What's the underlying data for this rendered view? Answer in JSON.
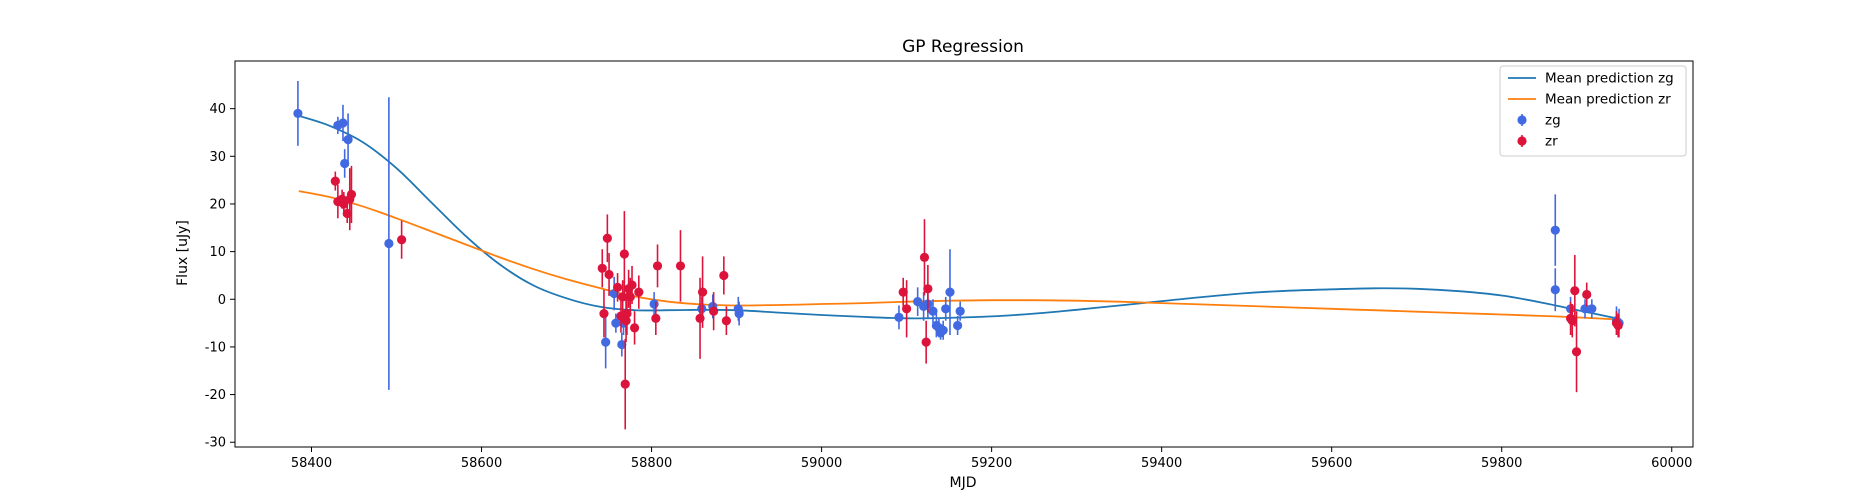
{
  "chart_data": {
    "type": "scatter",
    "title": "GP Regression",
    "xlabel": "MJD",
    "ylabel": "Flux [uJy]",
    "xlim": [
      58310,
      60025
    ],
    "ylim": [
      -31,
      50
    ],
    "xticks": [
      58400,
      58600,
      58800,
      59000,
      59200,
      59400,
      59600,
      59800,
      60000
    ],
    "yticks": [
      -30,
      -20,
      -10,
      0,
      10,
      20,
      30,
      40
    ],
    "grid": false,
    "legend_position": "top-right",
    "colors": {
      "zg_points": "#4169e1",
      "zr_points": "#dc143c",
      "zg_line": "#1f77b4",
      "zr_line": "#ff7f0e"
    },
    "lines": [
      {
        "name": "Mean prediction zg",
        "x": [
          58385,
          58420,
          58460,
          58500,
          58540,
          58580,
          58620,
          58660,
          58700,
          58740,
          58780,
          58820,
          58860,
          58900,
          58950,
          59000,
          59050,
          59100,
          59150,
          59200,
          59250,
          59300,
          59350,
          59400,
          59450,
          59500,
          59550,
          59600,
          59650,
          59700,
          59750,
          59800,
          59850,
          59900,
          59940
        ],
        "y": [
          38.5,
          36.5,
          33,
          27.5,
          20.5,
          13.5,
          7.5,
          3,
          0.2,
          -1.6,
          -2.3,
          -2.3,
          -2.2,
          -2.3,
          -2.8,
          -3.3,
          -3.7,
          -4.0,
          -3.9,
          -3.6,
          -3.0,
          -2.2,
          -1.3,
          -0.4,
          0.5,
          1.3,
          1.8,
          2.1,
          2.3,
          2.2,
          1.7,
          0.8,
          -0.8,
          -2.7,
          -4.2
        ]
      },
      {
        "name": "Mean prediction zr",
        "x": [
          58385,
          58420,
          58460,
          58500,
          58540,
          58580,
          58620,
          58660,
          58700,
          58740,
          58780,
          58820,
          58860,
          58900,
          58950,
          59000,
          59050,
          59100,
          59150,
          59200,
          59250,
          59300,
          59350,
          59400,
          59450,
          59500,
          59550,
          59600,
          59650,
          59700,
          59750,
          59800,
          59850,
          59900,
          59940
        ],
        "y": [
          22.7,
          21.5,
          19.5,
          17.0,
          14.3,
          11.6,
          8.9,
          6.4,
          4.2,
          2.3,
          0.6,
          -0.5,
          -1.1,
          -1.3,
          -1.2,
          -1.0,
          -0.8,
          -0.5,
          -0.3,
          -0.2,
          -0.2,
          -0.3,
          -0.5,
          -0.8,
          -1.1,
          -1.4,
          -1.7,
          -2.0,
          -2.3,
          -2.6,
          -2.9,
          -3.2,
          -3.5,
          -3.9,
          -4.3
        ]
      }
    ],
    "series": [
      {
        "name": "zg",
        "x": [
          58384,
          58431,
          58437,
          58439,
          58443,
          58491,
          58746,
          58756,
          58758,
          58765,
          58767,
          58770,
          58803,
          58859,
          58872,
          58902,
          58903,
          59091,
          59113,
          59120,
          59125,
          59131,
          59135,
          59138,
          59140,
          59143,
          59146,
          59151,
          59160,
          59163,
          59863,
          59863,
          59881,
          59898,
          59906,
          59935,
          59938
        ],
        "y": [
          39,
          36.5,
          37,
          28.5,
          33.5,
          11.7,
          -9,
          1.2,
          -5,
          -9.5,
          -5,
          -4.5,
          -1,
          -2,
          -1.5,
          -2,
          -3,
          -3.8,
          -0.5,
          -1.5,
          -1,
          -2.5,
          -5.5,
          -6,
          -7,
          -6.5,
          -2,
          1.5,
          -5.5,
          -2.5,
          14.5,
          2,
          -2,
          -2,
          -2,
          -4.5,
          -5
        ],
        "yerr": [
          6.8,
          1.8,
          3.8,
          3,
          5.5,
          30.7,
          5.5,
          3.5,
          2,
          2.5,
          2.5,
          2.5,
          2.5,
          2.5,
          2.5,
          2.5,
          2.5,
          2.5,
          3,
          3,
          3,
          2.5,
          2.5,
          2,
          1.5,
          2,
          2.5,
          9,
          2,
          2,
          7.5,
          4.5,
          2.5,
          2,
          2,
          3,
          3
        ]
      },
      {
        "name": "zr",
        "x": [
          58428,
          58431,
          58436,
          58438,
          58442,
          58445,
          58447,
          58506,
          58742,
          58744,
          58748,
          58750,
          58760,
          58764,
          58766,
          58768,
          58769,
          58770,
          58771,
          58773,
          58775,
          58777,
          58780,
          58785,
          58805,
          58807,
          58834,
          58857,
          58860,
          58873,
          58885,
          58888,
          59096,
          59100,
          59121,
          59123,
          59125,
          59881,
          59883,
          59886,
          59888,
          59900,
          59935,
          59937
        ],
        "y": [
          24.8,
          20.5,
          21,
          20,
          18,
          21,
          22,
          12.5,
          6.5,
          -3,
          12.8,
          5.2,
          2.5,
          -3.5,
          0.5,
          9.5,
          -17.8,
          -4.5,
          -3,
          2.2,
          0.5,
          3,
          -6,
          1.5,
          -4,
          7,
          7,
          -4,
          1.5,
          -2.5,
          5,
          -4.5,
          1.5,
          -2,
          8.8,
          -9,
          2.2,
          -4,
          -4.5,
          1.8,
          -11,
          1,
          -5,
          -5.5
        ],
        "yerr": [
          2,
          3.5,
          2,
          2.5,
          2,
          6.5,
          6,
          4,
          4,
          5,
          5,
          4.5,
          3,
          3.5,
          3.5,
          9,
          9.5,
          4.5,
          4.5,
          4,
          4,
          4,
          3.5,
          3.5,
          3.5,
          4.5,
          7.5,
          8.5,
          7.5,
          4,
          4,
          3,
          3,
          6,
          8,
          4.5,
          5,
          3.5,
          3.5,
          7.5,
          8.5,
          2.5,
          2.5,
          2.5
        ]
      }
    ]
  }
}
